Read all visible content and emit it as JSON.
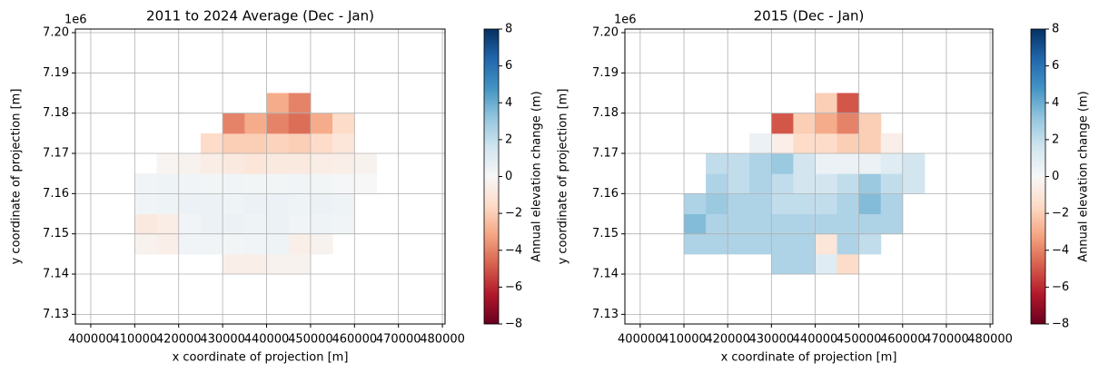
{
  "chart_data": [
    {
      "type": "heatmap",
      "title": "2011 to 2024 Average (Dec - Jan)",
      "x_label": "x coordinate of projection [m]",
      "y_label": "y coordinate of projection [m]",
      "y_offset_label": "1e6",
      "colorbar_label": "Annual elevation change (m)",
      "colormap": [
        "#67001f",
        "#b2182b",
        "#d6604d",
        "#f4a582",
        "#fddbc7",
        "#f7f7f7",
        "#d1e5f0",
        "#92c5de",
        "#4393c3",
        "#2166ac",
        "#053061"
      ],
      "clim": [
        -8,
        8
      ],
      "cticks": [
        {
          "value": -8,
          "label": "−8"
        },
        {
          "value": -6,
          "label": "−6"
        },
        {
          "value": -4,
          "label": "−4"
        },
        {
          "value": -2,
          "label": "−2"
        },
        0,
        2,
        4,
        6,
        8
      ],
      "grid": true,
      "xlim": [
        396500,
        480600
      ],
      "ylim": [
        7127600,
        7200900
      ],
      "xticks": [
        400000,
        410000,
        420000,
        430000,
        440000,
        450000,
        460000,
        470000,
        480000
      ],
      "yticks": [
        {
          "value": 7130000,
          "label": "7.13"
        },
        {
          "value": 7140000,
          "label": "7.14"
        },
        {
          "value": 7150000,
          "label": "7.15"
        },
        {
          "value": 7160000,
          "label": "7.16"
        },
        {
          "value": 7170000,
          "label": "7.17"
        },
        {
          "value": 7180000,
          "label": "7.18"
        },
        {
          "value": 7190000,
          "label": "7.19"
        },
        {
          "value": 7200000,
          "label": "7.20"
        }
      ],
      "x": [
        412500,
        417500,
        422500,
        427500,
        432500,
        437500,
        442500,
        447500,
        452500,
        457500,
        462500
      ],
      "y": [
        7142500,
        7147500,
        7152500,
        7157500,
        7162500,
        7167500,
        7172500,
        7177500,
        7182500
      ],
      "values": [
        [
          null,
          null,
          null,
          null,
          -0.5,
          -0.5,
          -0.3,
          -0.3,
          null,
          null,
          null
        ],
        [
          -0.3,
          -0.5,
          0.3,
          0.3,
          0.2,
          0.3,
          0.4,
          -0.5,
          -0.3,
          null,
          null
        ],
        [
          -0.8,
          -0.6,
          0.3,
          0.5,
          0.5,
          0.4,
          0.5,
          0.3,
          0.4,
          0.3,
          null
        ],
        [
          0.3,
          0.4,
          0.5,
          0.5,
          0.4,
          0.5,
          0.5,
          0.4,
          0.5,
          0.4,
          null
        ],
        [
          0.3,
          0.4,
          0.3,
          0.2,
          0.3,
          0.2,
          0.2,
          0.3,
          0.2,
          0.1,
          0.0
        ],
        [
          null,
          -0.2,
          -0.3,
          -0.6,
          -0.8,
          -1.0,
          -0.8,
          -0.8,
          -0.6,
          -0.5,
          -0.3
        ],
        [
          null,
          null,
          null,
          -1.5,
          -2.0,
          -2.0,
          -1.8,
          -2.0,
          -1.5,
          -1.0,
          null
        ],
        [
          null,
          null,
          null,
          null,
          -4.0,
          -3.0,
          -4.0,
          -4.5,
          -3.0,
          -1.5,
          null
        ],
        [
          null,
          null,
          null,
          null,
          null,
          null,
          -3.0,
          -4.0,
          null,
          null,
          null
        ]
      ]
    },
    {
      "type": "heatmap",
      "title": "2015 (Dec - Jan)",
      "x_label": "x coordinate of projection [m]",
      "y_label": "y coordinate of projection [m]",
      "y_offset_label": "1e6",
      "colorbar_label": "Annual elevation change (m)",
      "colormap": [
        "#67001f",
        "#b2182b",
        "#d6604d",
        "#f4a582",
        "#fddbc7",
        "#f7f7f7",
        "#d1e5f0",
        "#92c5de",
        "#4393c3",
        "#2166ac",
        "#053061"
      ],
      "clim": [
        -8,
        8
      ],
      "cticks": [
        {
          "value": -8,
          "label": "−8"
        },
        {
          "value": -6,
          "label": "−6"
        },
        {
          "value": -4,
          "label": "−4"
        },
        {
          "value": -2,
          "label": "−2"
        },
        0,
        2,
        4,
        6,
        8
      ],
      "grid": true,
      "xlim": [
        396500,
        480600
      ],
      "ylim": [
        7127600,
        7200900
      ],
      "xticks": [
        400000,
        410000,
        420000,
        430000,
        440000,
        450000,
        460000,
        470000,
        480000
      ],
      "yticks": [
        {
          "value": 7130000,
          "label": "7.13"
        },
        {
          "value": 7140000,
          "label": "7.14"
        },
        {
          "value": 7150000,
          "label": "7.15"
        },
        {
          "value": 7160000,
          "label": "7.16"
        },
        {
          "value": 7170000,
          "label": "7.17"
        },
        {
          "value": 7180000,
          "label": "7.18"
        },
        {
          "value": 7190000,
          "label": "7.19"
        },
        {
          "value": 7200000,
          "label": "7.20"
        }
      ],
      "x": [
        412500,
        417500,
        422500,
        427500,
        432500,
        437500,
        442500,
        447500,
        452500,
        457500,
        462500
      ],
      "y": [
        7142500,
        7147500,
        7152500,
        7157500,
        7162500,
        7167500,
        7172500,
        7177500,
        7182500
      ],
      "values": [
        [
          null,
          null,
          null,
          null,
          2.5,
          2.5,
          1.0,
          -1.5,
          null,
          null,
          null
        ],
        [
          2.5,
          2.5,
          2.5,
          2.5,
          2.5,
          2.5,
          -1.0,
          2.5,
          2.0,
          null,
          null
        ],
        [
          3.5,
          2.5,
          2.5,
          2.5,
          2.5,
          2.5,
          2.5,
          2.5,
          2.5,
          2.5,
          null
        ],
        [
          2.5,
          3.0,
          2.5,
          2.5,
          2.0,
          2.0,
          2.0,
          2.5,
          3.5,
          2.5,
          null
        ],
        [
          null,
          2.5,
          2.0,
          2.5,
          2.0,
          1.5,
          1.5,
          2.0,
          3.0,
          2.0,
          1.5
        ],
        [
          null,
          2.0,
          2.0,
          2.5,
          3.0,
          1.5,
          0.5,
          0.5,
          0.5,
          1.0,
          1.5
        ],
        [
          null,
          null,
          null,
          0.5,
          -0.5,
          -1.5,
          -1.5,
          -2.0,
          -2.0,
          -0.5,
          null
        ],
        [
          null,
          null,
          null,
          null,
          -5.0,
          -2.0,
          -3.0,
          -4.0,
          -2.0,
          null,
          null
        ],
        [
          null,
          null,
          null,
          null,
          null,
          null,
          -2.0,
          -5.0,
          null,
          null,
          null
        ]
      ]
    }
  ]
}
